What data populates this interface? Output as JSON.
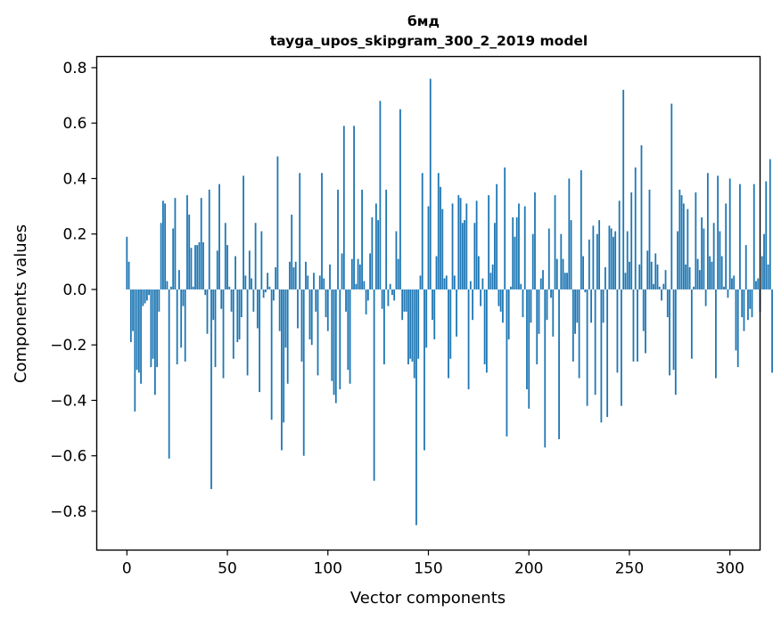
{
  "chart_data": {
    "type": "bar",
    "title_line1": "бмд",
    "title_line2": "tayga_upos_skipgram_300_2_2019 model",
    "xlabel": "Vector components",
    "ylabel": "Components values",
    "xlim": [
      -15,
      315
    ],
    "ylim": [
      -0.94,
      0.84
    ],
    "xticks": [
      0,
      50,
      100,
      150,
      200,
      250,
      300
    ],
    "xtick_labels": [
      "0",
      "50",
      "100",
      "150",
      "200",
      "250",
      "300"
    ],
    "yticks": [
      -0.8,
      -0.6,
      -0.4,
      -0.2,
      0.0,
      0.2,
      0.4,
      0.6,
      0.8
    ],
    "ytick_labels": [
      "−0.8",
      "−0.6",
      "−0.4",
      "−0.2",
      "0.0",
      "0.2",
      "0.4",
      "0.6",
      "0.8"
    ],
    "bar_color": "#1f77b4",
    "values": [
      0.19,
      0.1,
      -0.19,
      -0.15,
      -0.44,
      -0.29,
      -0.3,
      -0.34,
      -0.06,
      -0.05,
      -0.04,
      -0.02,
      -0.28,
      -0.25,
      -0.38,
      -0.28,
      -0.08,
      0.24,
      0.32,
      0.31,
      0.03,
      -0.61,
      0.01,
      0.22,
      0.33,
      -0.27,
      0.07,
      -0.21,
      -0.06,
      -0.26,
      0.34,
      0.27,
      0.15,
      0.01,
      0.16,
      0.16,
      0.17,
      0.33,
      0.17,
      -0.02,
      -0.16,
      0.36,
      -0.72,
      -0.11,
      -0.28,
      0.14,
      0.38,
      -0.07,
      -0.32,
      0.24,
      0.16,
      0.01,
      -0.08,
      -0.25,
      0.12,
      -0.19,
      -0.18,
      -0.1,
      0.41,
      0.05,
      -0.31,
      0.14,
      0.04,
      -0.08,
      0.24,
      -0.14,
      -0.37,
      0.21,
      -0.03,
      -0.01,
      0.06,
      0.01,
      -0.47,
      -0.04,
      0.08,
      0.48,
      -0.15,
      -0.58,
      -0.48,
      -0.21,
      -0.34,
      0.1,
      0.27,
      0.08,
      0.1,
      -0.14,
      0.42,
      -0.26,
      -0.6,
      0.1,
      0.05,
      -0.18,
      -0.2,
      0.06,
      -0.08,
      -0.31,
      0.05,
      0.42,
      0.04,
      -0.1,
      -0.15,
      0.09,
      -0.33,
      -0.38,
      -0.41,
      0.36,
      -0.36,
      0.13,
      0.59,
      -0.08,
      -0.29,
      -0.34,
      0.11,
      0.59,
      0.02,
      0.11,
      0.09,
      0.36,
      0.03,
      -0.09,
      -0.04,
      0.13,
      0.26,
      -0.69,
      0.31,
      0.25,
      0.68,
      -0.07,
      -0.27,
      0.36,
      -0.06,
      0.02,
      -0.02,
      -0.04,
      0.21,
      0.11,
      0.65,
      -0.11,
      -0.08,
      -0.08,
      -0.27,
      -0.25,
      -0.26,
      -0.32,
      -0.85,
      -0.25,
      0.05,
      0.42,
      -0.58,
      -0.21,
      0.3,
      0.76,
      -0.11,
      -0.18,
      0.12,
      0.42,
      0.37,
      0.29,
      0.04,
      0.05,
      -0.32,
      -0.25,
      0.31,
      0.05,
      -0.17,
      0.34,
      0.33,
      0.24,
      0.25,
      0.31,
      -0.36,
      0.03,
      -0.11,
      0.24,
      0.32,
      0.12,
      -0.06,
      0.04,
      -0.27,
      -0.3,
      0.34,
      0.06,
      0.09,
      0.24,
      0.38,
      -0.06,
      -0.08,
      -0.12,
      0.44,
      -0.53,
      -0.18,
      0.01,
      0.26,
      0.19,
      0.26,
      0.31,
      0.02,
      -0.1,
      0.3,
      -0.36,
      -0.43,
      -0.12,
      0.2,
      0.35,
      -0.27,
      -0.16,
      0.04,
      0.07,
      -0.57,
      -0.11,
      0.22,
      -0.03,
      -0.17,
      0.34,
      0.11,
      -0.54,
      0.2,
      0.11,
      0.06,
      0.06,
      0.4,
      0.25,
      -0.26,
      -0.16,
      -0.12,
      -0.32,
      0.43,
      0.12,
      -0.01,
      -0.42,
      0.18,
      -0.12,
      0.23,
      -0.38,
      0.2,
      0.25,
      -0.48,
      -0.12,
      0.08,
      -0.46,
      0.23,
      0.22,
      0.19,
      0.21,
      -0.3,
      0.32,
      -0.42,
      0.72,
      0.06,
      0.21,
      0.1,
      0.35,
      -0.26,
      0.44,
      -0.26,
      0.09,
      0.52,
      -0.15,
      -0.23,
      0.14,
      0.36,
      0.1,
      0.02,
      0.13,
      0.09,
      0.01,
      -0.04,
      0.02,
      0.07,
      -0.1,
      -0.31,
      0.67,
      -0.29,
      -0.38,
      0.21,
      0.36,
      0.34,
      0.31,
      0.09,
      0.29,
      0.08,
      -0.25,
      0.01,
      0.35,
      0.11,
      0.07,
      0.26,
      0.22,
      -0.06,
      0.42,
      0.12,
      0.1,
      0.24,
      -0.32,
      0.41,
      0.21,
      0.12,
      0.01,
      0.31,
      -0.03,
      0.4,
      0.04,
      0.05,
      -0.22,
      -0.28,
      0.38,
      -0.1,
      -0.15,
      0.16,
      -0.11,
      -0.07,
      -0.1,
      0.38,
      0.03,
      0.04,
      -0.08,
      0.12,
      0.2,
      0.39,
      0.09,
      0.47,
      -0.3
    ]
  }
}
